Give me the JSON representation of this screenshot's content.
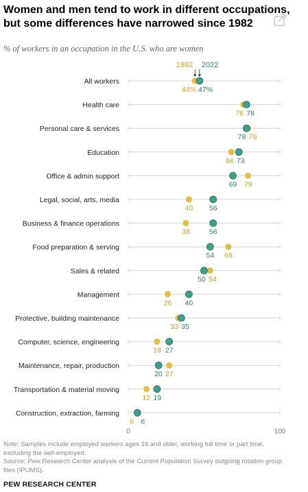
{
  "header": {
    "title": "Women and men tend to work in different occupations, but some differences have narrowed since 1982",
    "subtitle": "% of workers in an occupation in the U.S. who are women"
  },
  "footer": {
    "note": "Note: Samples include employed workers ages 16 and older, working full time or part time, excluding the self-employed.",
    "source": "Source: Pew Research Center analysis of the Current Population Survey outgoing rotation group files (IPUMS).",
    "brand": "PEW RESEARCH CENTER"
  },
  "icons": {
    "share": "share-icon"
  },
  "chart_data": {
    "type": "scatter",
    "subtype": "dot-plot",
    "title": "Women and men tend to work in different occupations, but some differences have narrowed since 1982",
    "subtitle": "% of workers in an occupation in the U.S. who are women",
    "categories": [
      "All workers",
      "Health care",
      "Personal care & services",
      "Education",
      "Office & admin support",
      "Legal, social, arts, media",
      "Business & finance operations",
      "Food preparation & serving",
      "Sales & related",
      "Management",
      "Protective, building maintenance",
      "Computer, science, engineering",
      "Maintenance, repair, production",
      "Transportation & material moving",
      "Construction, extraction, farming"
    ],
    "series": [
      {
        "name": "1982",
        "color": "#E3BD4E",
        "values": [
          44,
          76,
          79,
          68,
          79,
          40,
          38,
          66,
          54,
          26,
          33,
          19,
          27,
          12,
          6
        ]
      },
      {
        "name": "2022",
        "color": "#3F9E8D",
        "values": [
          47,
          78,
          78,
          73,
          69,
          56,
          56,
          54,
          50,
          40,
          35,
          27,
          20,
          19,
          6
        ]
      }
    ],
    "first_row_labels": [
      "44%",
      "47%"
    ],
    "xlim": [
      0,
      100
    ],
    "x_ticks": [
      "0",
      "100"
    ],
    "legend": "inline-top",
    "grid": false
  }
}
